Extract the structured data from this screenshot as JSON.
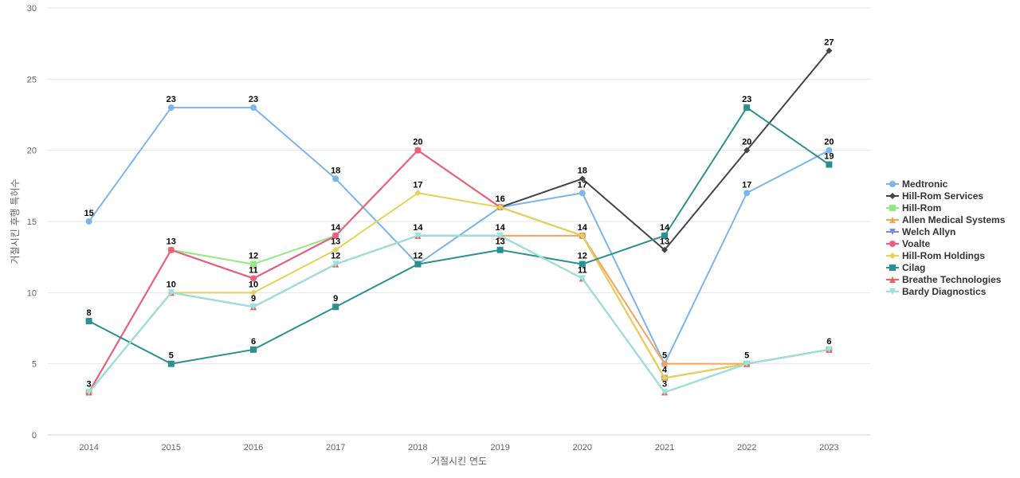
{
  "chart_data": {
    "type": "line",
    "title": "",
    "xlabel": "거절시킨 연도",
    "ylabel": "거절시킨 후행 특허수",
    "ylim": [
      0,
      30
    ],
    "yticks": [
      0,
      5,
      10,
      15,
      20,
      25,
      30
    ],
    "grid": "horizontal",
    "legend_position": "right",
    "categories": [
      "2014",
      "2015",
      "2016",
      "2017",
      "2018",
      "2019",
      "2020",
      "2021",
      "2022",
      "2023"
    ],
    "series": [
      {
        "name": "Medtronic",
        "color": "#7cb5ec",
        "marker": "circle",
        "values": [
          15,
          23,
          23,
          18,
          12,
          16,
          17,
          5,
          17,
          20
        ],
        "labels": [
          15,
          23,
          23,
          18,
          null,
          null,
          17,
          null,
          17,
          20
        ]
      },
      {
        "name": "Hill-Rom Services",
        "color": "#434348",
        "marker": "diamond",
        "values": [
          3,
          13,
          11,
          14,
          20,
          16,
          18,
          13,
          20,
          27
        ],
        "labels": [
          null,
          null,
          null,
          null,
          null,
          null,
          18,
          13,
          20,
          27
        ]
      },
      {
        "name": "Hill-Rom",
        "color": "#90ed7d",
        "marker": "square",
        "values": [
          3,
          13,
          12,
          14,
          20,
          16,
          14,
          4,
          5,
          6
        ],
        "labels": [
          null,
          null,
          12,
          null,
          null,
          null,
          null,
          null,
          null,
          null
        ]
      },
      {
        "name": "Allen Medical Systems",
        "color": "#f7a35c",
        "marker": "triangle",
        "values": [
          3,
          10,
          9,
          12,
          14,
          14,
          14,
          5,
          5,
          6
        ],
        "labels": [
          null,
          null,
          null,
          null,
          null,
          null,
          14,
          5,
          null,
          null
        ]
      },
      {
        "name": "Welch Allyn",
        "color": "#8085e9",
        "marker": "triangle-down",
        "values": [
          3,
          10,
          9,
          12,
          14,
          14,
          11,
          3,
          5,
          6
        ],
        "labels": [
          null,
          null,
          null,
          null,
          null,
          null,
          null,
          null,
          null,
          null
        ]
      },
      {
        "name": "Voalte",
        "color": "#f15c80",
        "marker": "circle",
        "values": [
          3,
          13,
          11,
          14,
          20,
          16,
          14,
          4,
          5,
          6
        ],
        "labels": [
          null,
          13,
          11,
          14,
          20,
          null,
          null,
          null,
          null,
          null
        ]
      },
      {
        "name": "Hill-Rom Holdings",
        "color": "#e4d354",
        "marker": "diamond",
        "values": [
          3,
          10,
          10,
          13,
          17,
          16,
          14,
          4,
          5,
          6
        ],
        "labels": [
          null,
          null,
          10,
          13,
          17,
          16,
          null,
          4,
          null,
          null
        ]
      },
      {
        "name": "Cilag",
        "color": "#2b908f",
        "marker": "square",
        "values": [
          8,
          5,
          6,
          9,
          12,
          13,
          12,
          14,
          23,
          19
        ],
        "labels": [
          8,
          5,
          6,
          9,
          12,
          13,
          12,
          14,
          23,
          19
        ]
      },
      {
        "name": "Breathe Technologies",
        "color": "#f45b5b",
        "marker": "triangle",
        "values": [
          3,
          10,
          9,
          12,
          14,
          14,
          11,
          3,
          5,
          6
        ],
        "labels": [
          null,
          null,
          null,
          null,
          null,
          null,
          null,
          null,
          null,
          null
        ]
      },
      {
        "name": "Bardy Diagnostics",
        "color": "#91e8e1",
        "marker": "triangle-down",
        "values": [
          3,
          10,
          9,
          12,
          14,
          14,
          11,
          3,
          5,
          6
        ],
        "labels": [
          3,
          10,
          9,
          12,
          14,
          14,
          11,
          3,
          5,
          6
        ]
      }
    ]
  }
}
